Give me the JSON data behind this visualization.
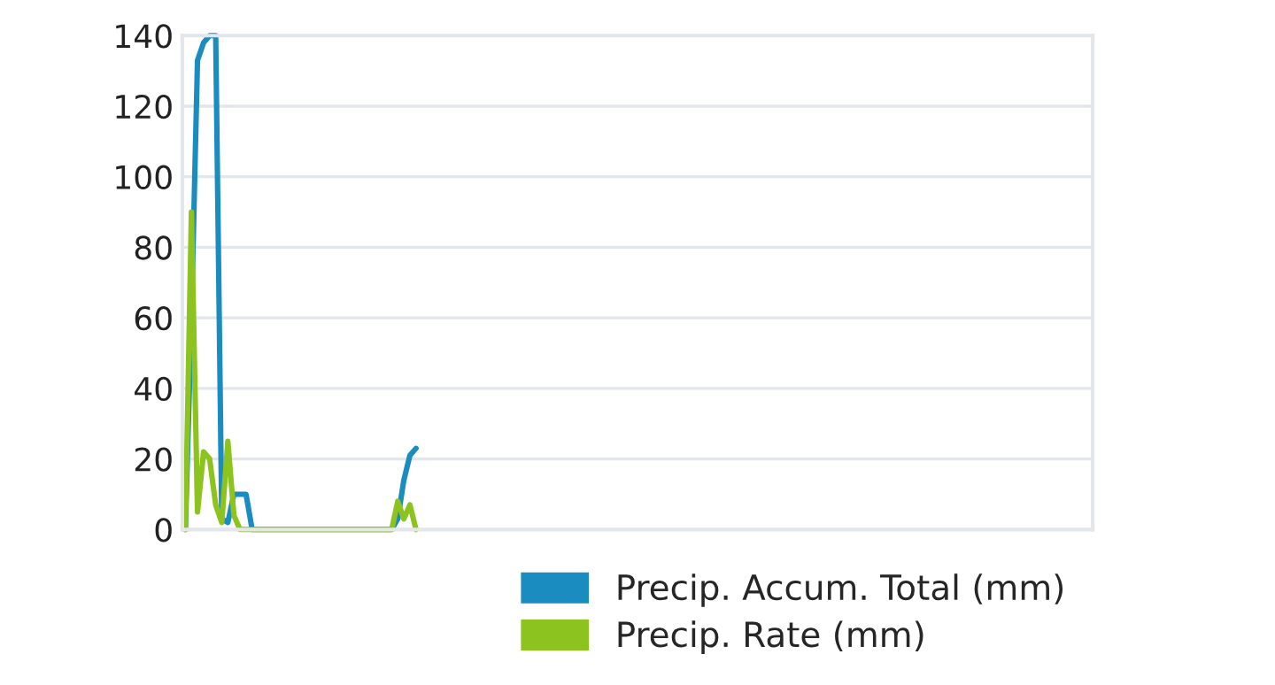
{
  "chart_data": {
    "type": "line",
    "categories": [
      null,
      null,
      null,
      null,
      null,
      null,
      null,
      null,
      null,
      null,
      null,
      null,
      null,
      null,
      null,
      null,
      null,
      null,
      null,
      null,
      null,
      null,
      null,
      null,
      null,
      null,
      null,
      null,
      null,
      null,
      null,
      null,
      null,
      null,
      null,
      null,
      null,
      null,
      null,
      null,
      null,
      null,
      null,
      null,
      null,
      null,
      null,
      null,
      null,
      null,
      null,
      null,
      null,
      null,
      null,
      null,
      null,
      null,
      null,
      null,
      null,
      null,
      null,
      null,
      null,
      null,
      null,
      null,
      null,
      null,
      null,
      null,
      null,
      null,
      null,
      null,
      null,
      null,
      null,
      null,
      null,
      null,
      null,
      null,
      null,
      null,
      null,
      null,
      null,
      null,
      null,
      null,
      null,
      null,
      null,
      null,
      null,
      null,
      null,
      null,
      null,
      null,
      null,
      null,
      null,
      null,
      null,
      null,
      null,
      null,
      null,
      null,
      null,
      null,
      null,
      null,
      null,
      null,
      null,
      null,
      null,
      null,
      null,
      null,
      null,
      null,
      null,
      null,
      null,
      null,
      null,
      null,
      null,
      null,
      null,
      null,
      null,
      null,
      null,
      null,
      null,
      null,
      null,
      null,
      null,
      null,
      null,
      null,
      null,
      null
    ],
    "series": [
      {
        "name": "Precip. Accum. Total (mm)",
        "color": "#1a8cbf",
        "values": [
          0,
          60,
          133,
          138,
          140,
          140,
          3,
          2,
          10,
          10,
          10,
          0,
          null,
          null,
          null,
          null,
          null,
          null,
          null,
          null,
          null,
          null,
          null,
          null,
          null,
          null,
          null,
          null,
          null,
          null,
          null,
          null,
          null,
          null,
          0,
          3,
          14,
          21,
          23,
          null,
          null,
          null,
          null,
          null,
          null,
          null,
          null,
          null,
          null,
          null,
          null,
          null,
          null,
          null,
          null,
          null,
          null,
          null,
          null,
          null,
          null,
          null,
          null,
          null,
          null,
          null,
          null,
          null,
          null,
          null,
          null,
          null,
          null,
          null,
          null,
          null,
          null,
          null,
          null,
          null,
          null,
          null,
          null,
          null,
          null,
          null,
          null,
          null,
          null,
          null,
          null,
          null,
          null,
          null,
          null,
          null,
          null,
          null,
          null,
          null,
          null,
          null,
          null,
          null,
          null,
          null,
          null,
          null,
          null,
          null,
          null,
          null,
          null,
          null,
          null,
          null,
          null,
          null,
          null,
          null,
          null,
          null,
          null,
          null,
          null,
          null,
          null,
          null,
          null,
          null,
          null,
          null,
          null,
          null,
          null,
          null,
          null,
          null,
          null,
          null,
          null,
          null,
          null,
          null,
          null,
          null,
          null,
          null,
          null,
          null
        ]
      },
      {
        "name": "Precip. Rate (mm)",
        "color": "#8cc31e",
        "values": [
          0,
          90,
          5,
          22,
          20,
          7,
          2,
          25,
          4,
          0,
          0,
          0,
          0,
          0,
          0,
          0,
          0,
          0,
          0,
          0,
          0,
          0,
          0,
          0,
          0,
          0,
          0,
          0,
          0,
          0,
          0,
          0,
          0,
          0,
          0,
          8,
          3,
          7,
          0,
          null,
          null,
          null,
          null,
          null,
          null,
          null,
          null,
          null,
          null,
          null,
          null,
          null,
          null,
          null,
          null,
          null,
          null,
          null,
          null,
          null,
          null,
          null,
          null,
          null,
          null,
          null,
          null,
          null,
          null,
          null,
          null,
          null,
          null,
          null,
          null,
          null,
          null,
          null,
          null,
          null,
          null,
          null,
          null,
          null,
          null,
          null,
          null,
          null,
          null,
          null,
          null,
          null,
          null,
          null,
          null,
          null,
          null,
          null,
          null,
          null,
          null,
          null,
          null,
          null,
          null,
          null,
          null,
          null,
          null,
          null,
          null,
          null,
          null,
          null,
          null,
          null,
          null,
          null,
          null,
          null,
          null,
          null,
          null,
          null,
          null,
          null,
          null,
          null,
          null,
          null,
          null,
          null,
          null,
          null,
          null,
          null,
          null,
          null,
          null,
          null,
          null,
          null,
          null,
          null,
          null,
          null,
          null,
          null,
          null,
          null
        ]
      }
    ],
    "ylim": [
      0,
      140
    ],
    "yticks": [
      0,
      20,
      40,
      60,
      80,
      100,
      120,
      140
    ],
    "grid": "y",
    "legend": "bottom right",
    "marker": "none",
    "line_style": "solid"
  }
}
